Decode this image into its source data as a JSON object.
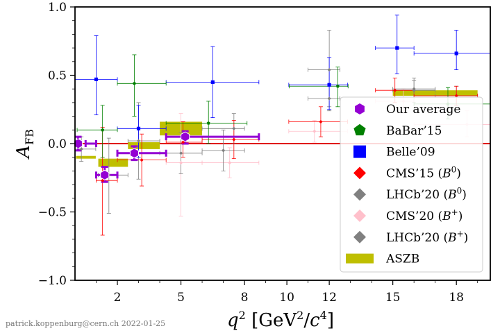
{
  "credit": "patrick.koppenburg@cern.ch 2022-01-25",
  "chart_data": {
    "type": "scatter",
    "xlabel": "q^2 [GeV^2/c^4]",
    "ylabel": "A_FB",
    "xlim": [
      0,
      19.6
    ],
    "ylim": [
      -1.0,
      1.0
    ],
    "xticks": [
      {
        "v": 2,
        "label": "2"
      },
      {
        "v": 5,
        "label": "5"
      },
      {
        "v": 8,
        "label": "8"
      },
      {
        "v": 10,
        "label": "10"
      },
      {
        "v": 12,
        "label": "12"
      },
      {
        "v": 15,
        "label": "15"
      },
      {
        "v": 18,
        "label": "18"
      }
    ],
    "yticks": [
      {
        "v": -1.0,
        "label": "−1.0"
      },
      {
        "v": -0.5,
        "label": "−0.5"
      },
      {
        "v": 0.0,
        "label": "0.0"
      },
      {
        "v": 0.5,
        "label": "0.5"
      },
      {
        "v": 1.0,
        "label": "1.0"
      }
    ],
    "zero_line_color": "#e00000",
    "legend_position": "lower-right",
    "series": [
      {
        "name": "Our average",
        "marker": "hexagon",
        "color": "#9400d3",
        "points": [
          {
            "x": 0.15,
            "y": 0.0,
            "xl": 0.5,
            "xh": 1.0,
            "ylo": -0.05,
            "yhi": 0.05
          },
          {
            "x": 1.4,
            "y": -0.23,
            "xl": 1.0,
            "xh": 2.0,
            "ylo": -0.28,
            "yhi": -0.17
          },
          {
            "x": 2.8,
            "y": -0.07,
            "xl": 2.0,
            "xh": 4.3,
            "ylo": -0.12,
            "yhi": -0.02
          },
          {
            "x": 5.2,
            "y": 0.05,
            "xl": 4.3,
            "xh": 8.68,
            "ylo": 0.0,
            "yhi": 0.09
          }
        ]
      },
      {
        "name": "BaBar’15",
        "marker": "pentagon",
        "color": "#008000",
        "points": [
          {
            "x": 1.3,
            "y": 0.1,
            "xl": 0.1,
            "xh": 2.0,
            "ylo": -0.1,
            "yhi": 0.28
          },
          {
            "x": 2.8,
            "y": 0.44,
            "xl": 2.0,
            "xh": 4.3,
            "ylo": 0.2,
            "yhi": 0.65
          },
          {
            "x": 6.3,
            "y": 0.15,
            "xl": 4.3,
            "xh": 8.12,
            "ylo": 0.0,
            "yhi": 0.31
          },
          {
            "x": 12.4,
            "y": 0.42,
            "xl": 10.11,
            "xh": 12.89,
            "ylo": 0.27,
            "yhi": 0.56
          },
          {
            "x": 17.6,
            "y": 0.29,
            "xl": 16.0,
            "xh": 19.6,
            "ylo": 0.18,
            "yhi": 0.41
          }
        ]
      },
      {
        "name": "Belle’09",
        "marker": "square",
        "color": "#0000ff",
        "points": [
          {
            "x": 1.0,
            "y": 0.47,
            "xl": 0.0,
            "xh": 2.0,
            "ylo": 0.21,
            "yhi": 0.79
          },
          {
            "x": 3.0,
            "y": 0.11,
            "xl": 2.0,
            "xh": 4.3,
            "ylo": -0.1,
            "yhi": 0.28
          },
          {
            "x": 6.5,
            "y": 0.45,
            "xl": 4.3,
            "xh": 8.68,
            "ylo": 0.19,
            "yhi": 0.71
          },
          {
            "x": 12.0,
            "y": 0.43,
            "xl": 10.09,
            "xh": 12.86,
            "ylo": 0.25,
            "yhi": 0.63
          },
          {
            "x": 15.2,
            "y": 0.7,
            "xl": 14.18,
            "xh": 16.0,
            "ylo": 0.51,
            "yhi": 0.94
          },
          {
            "x": 18.0,
            "y": 0.66,
            "xl": 16.0,
            "xh": 19.6,
            "ylo": 0.54,
            "yhi": 0.83
          }
        ]
      },
      {
        "name": "CMS’15 (B^0)",
        "marker": "diamond",
        "color": "#ff0000",
        "points": [
          {
            "x": 1.3,
            "y": -0.27,
            "xl": 1.0,
            "xh": 2.0,
            "ylo": -0.67,
            "yhi": 0.12
          },
          {
            "x": 3.15,
            "y": -0.12,
            "xl": 2.0,
            "xh": 4.3,
            "ylo": -0.31,
            "yhi": 0.07
          },
          {
            "x": 5.1,
            "y": 0.01,
            "xl": 4.3,
            "xh": 6.0,
            "ylo": -0.1,
            "yhi": 0.16
          },
          {
            "x": 7.5,
            "y": 0.03,
            "xl": 6.0,
            "xh": 8.68,
            "ylo": -0.11,
            "yhi": 0.17
          },
          {
            "x": 11.6,
            "y": 0.16,
            "xl": 10.09,
            "xh": 12.86,
            "ylo": 0.05,
            "yhi": 0.27
          },
          {
            "x": 15.1,
            "y": 0.39,
            "xl": 14.18,
            "xh": 16.0,
            "ylo": 0.3,
            "yhi": 0.48
          },
          {
            "x": 18.0,
            "y": 0.35,
            "xl": 16.0,
            "xh": 19.0,
            "ylo": 0.28,
            "yhi": 0.42
          }
        ]
      },
      {
        "name": "LHCb’20 (B^0)",
        "marker": "diamond",
        "color": "#808080",
        "points": [
          {
            "x": 0.3,
            "y": -0.04,
            "xl": 0.1,
            "xh": 0.98,
            "ylo": -0.13,
            "yhi": 0.05
          },
          {
            "x": 1.6,
            "y": -0.23,
            "xl": 1.1,
            "xh": 2.5,
            "ylo": -0.51,
            "yhi": 0.04
          },
          {
            "x": 3.0,
            "y": 0.02,
            "xl": 2.5,
            "xh": 4.0,
            "ylo": -0.26,
            "yhi": 0.3
          },
          {
            "x": 5.0,
            "y": -0.07,
            "xl": 4.0,
            "xh": 6.0,
            "ylo": -0.22,
            "yhi": 0.08
          },
          {
            "x": 7.0,
            "y": -0.05,
            "xl": 6.0,
            "xh": 8.0,
            "ylo": -0.2,
            "yhi": 0.1
          },
          {
            "x": 12.0,
            "y": 0.33,
            "xl": 11.0,
            "xh": 12.5,
            "ylo": 0.24,
            "yhi": 0.43
          },
          {
            "x": 16.0,
            "y": 0.4,
            "xl": 15.0,
            "xh": 17.0,
            "ylo": 0.34,
            "yhi": 0.46
          },
          {
            "x": 18.0,
            "y": 0.35,
            "xl": 17.0,
            "xh": 19.0,
            "ylo": 0.28,
            "yhi": 0.42
          }
        ]
      },
      {
        "name": "CMS’20 (B^+)",
        "marker": "diamond",
        "color": "#ffc0cb",
        "points": [
          {
            "x": 5.0,
            "y": -0.14,
            "xl": 4.3,
            "xh": 6.0,
            "ylo": -0.53,
            "yhi": 0.22
          },
          {
            "x": 7.3,
            "y": -0.14,
            "xl": 6.0,
            "xh": 8.68,
            "ylo": -0.25,
            "yhi": -0.03
          },
          {
            "x": 11.3,
            "y": 0.09,
            "xl": 10.09,
            "xh": 12.86,
            "ylo": 0.01,
            "yhi": 0.17
          },
          {
            "x": 15.5,
            "y": 0.31,
            "xl": 14.18,
            "xh": 16.0,
            "ylo": 0.22,
            "yhi": 0.4
          },
          {
            "x": 18.5,
            "y": 0.14,
            "xl": 16.0,
            "xh": 19.6,
            "ylo": 0.05,
            "yhi": 0.24
          }
        ]
      },
      {
        "name": "LHCb’20 (B^+)",
        "marker": "diamond",
        "color": "#808080",
        "points": [
          {
            "x": 7.5,
            "y": 0.11,
            "xl": 6.0,
            "xh": 8.0,
            "ylo": 0.0,
            "yhi": 0.22
          },
          {
            "x": 12.0,
            "y": 0.54,
            "xl": 11.0,
            "xh": 12.5,
            "ylo": 0.27,
            "yhi": 0.83
          },
          {
            "x": 16.0,
            "y": 0.39,
            "xl": 15.0,
            "xh": 17.0,
            "ylo": 0.3,
            "yhi": 0.48
          }
        ]
      },
      {
        "name": "ASZB",
        "marker": "band",
        "color": "#bfbf00",
        "bands": [
          {
            "xl": 0.05,
            "xh": 0.98,
            "ylo": -0.11,
            "yhi": -0.09
          },
          {
            "xl": 1.1,
            "xh": 2.5,
            "ylo": -0.17,
            "yhi": -0.11
          },
          {
            "xl": 2.5,
            "xh": 4.0,
            "ylo": -0.04,
            "yhi": 0.01
          },
          {
            "xl": 4.0,
            "xh": 6.0,
            "ylo": 0.06,
            "yhi": 0.16
          },
          {
            "xl": 15.0,
            "xh": 19.0,
            "ylo": 0.35,
            "yhi": 0.39
          }
        ]
      }
    ]
  }
}
